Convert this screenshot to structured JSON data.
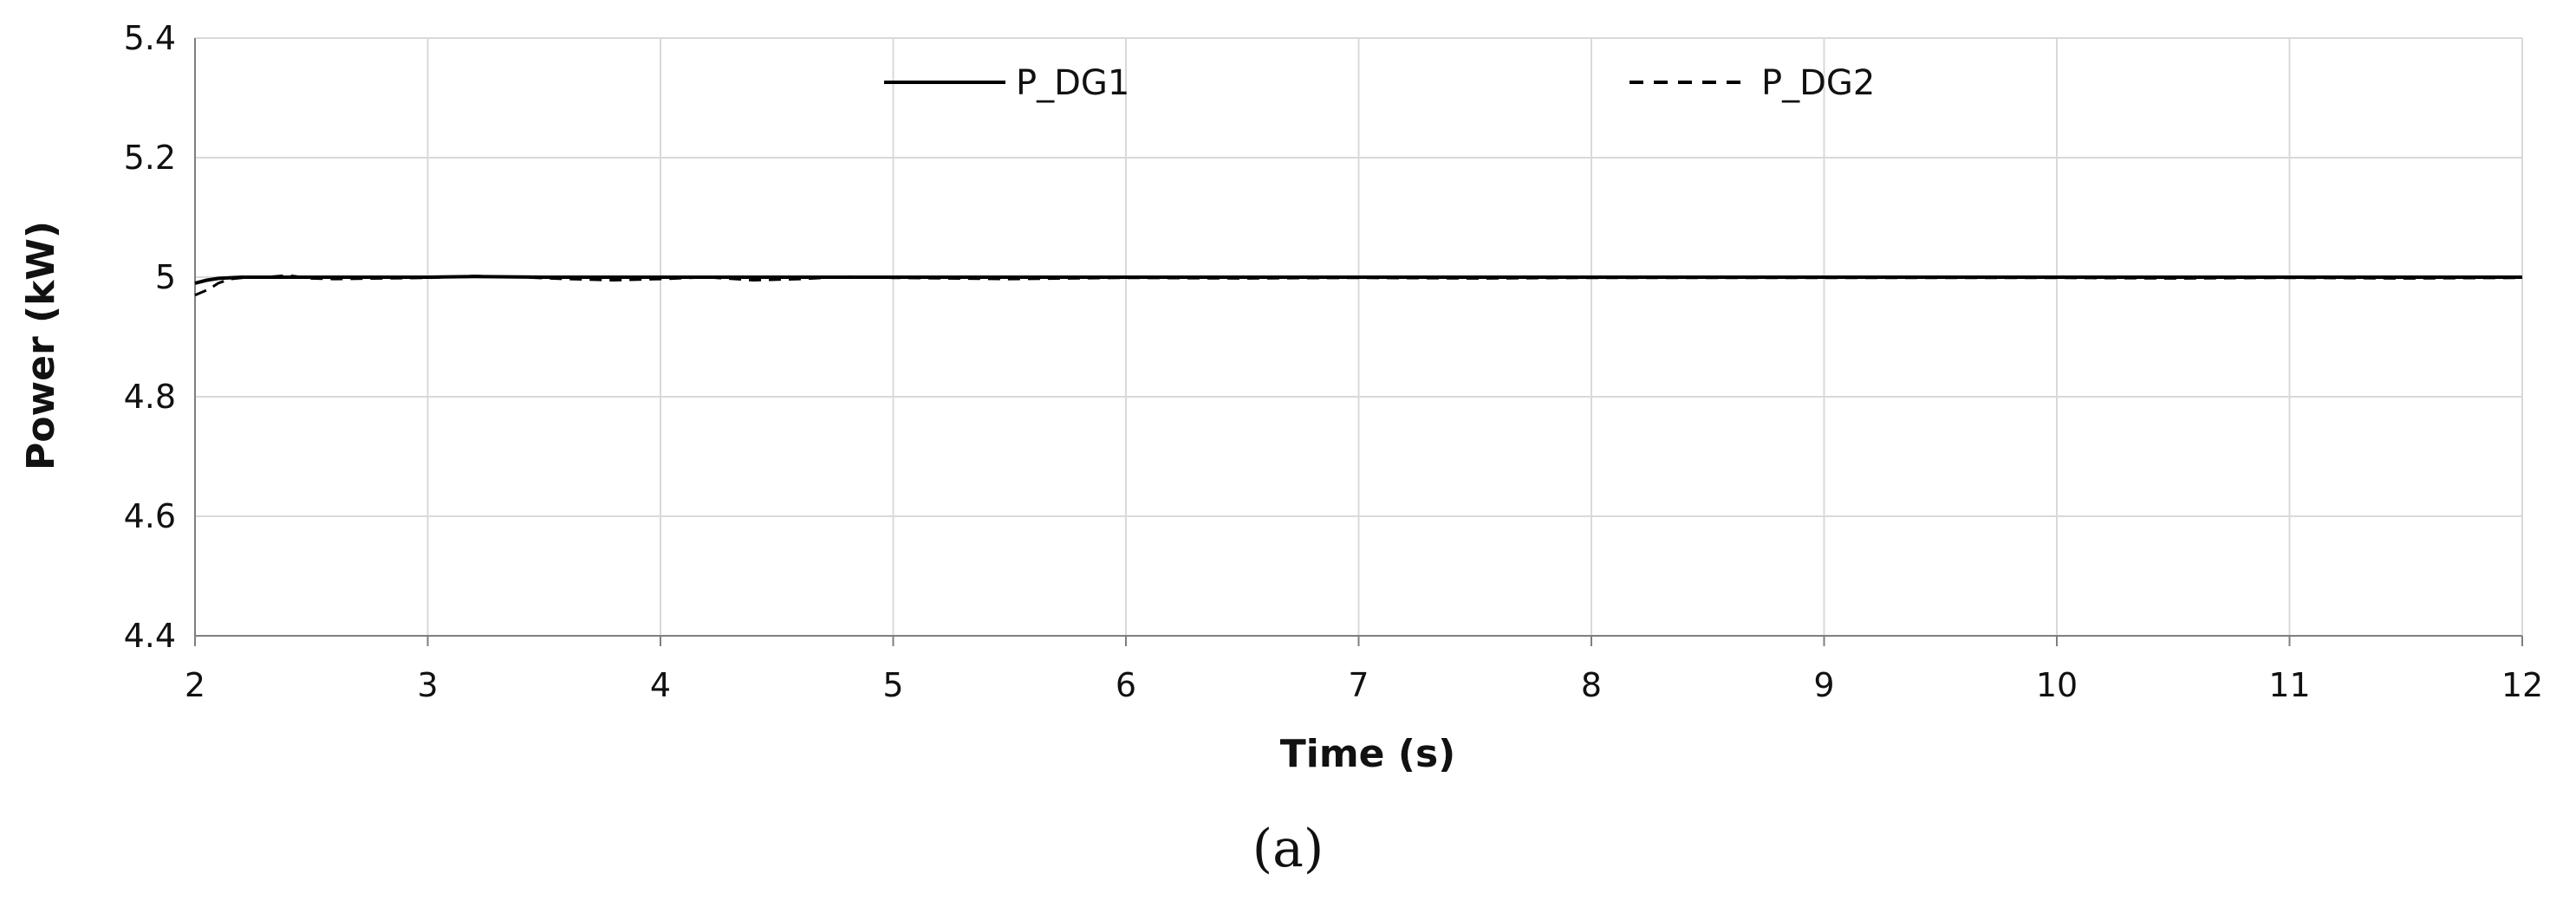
{
  "caption": "(a)",
  "chart_data": {
    "type": "line",
    "title": "",
    "xlabel": "Time (s)",
    "ylabel": "Power (kW)",
    "xlim": [
      2,
      12
    ],
    "ylim": [
      4.4,
      5.4
    ],
    "x_ticks": [
      "2",
      "3",
      "4",
      "5",
      "6",
      "7",
      "8",
      "9",
      "10",
      "11",
      "12"
    ],
    "y_ticks": [
      "4.4",
      "4.6",
      "4.8",
      "5",
      "5.2",
      "5.4"
    ],
    "grid": true,
    "legend_position": "top",
    "series": [
      {
        "name": "P_DG1",
        "style": "solid",
        "color": "#000000",
        "x": [
          2,
          2.05,
          2.1,
          2.2,
          2.4,
          2.6,
          2.8,
          3,
          3.2,
          3.5,
          3.8,
          4,
          4.5,
          5,
          5.5,
          6,
          6.5,
          7,
          7.5,
          8,
          8.5,
          9,
          9.5,
          10,
          10.5,
          11,
          11.5,
          12
        ],
        "y": [
          4.99,
          4.995,
          4.998,
          5.0,
          5.0,
          5.0,
          5.0,
          5.0,
          5.001,
          5.0,
          5.0,
          5.0,
          5.0,
          5.0,
          5.0,
          5.0,
          5.0,
          5.0,
          5.0,
          5.0,
          5.0,
          5.0,
          5.0,
          5.0,
          5.0,
          5.0,
          5.0,
          5.0
        ]
      },
      {
        "name": "P_DG2",
        "style": "dashed",
        "color": "#000000",
        "x": [
          2,
          2.03,
          2.06,
          2.1,
          2.15,
          2.2,
          2.3,
          2.4,
          2.5,
          2.6,
          2.8,
          3,
          3.2,
          3.4,
          3.6,
          3.8,
          4,
          4.2,
          4.4,
          4.6,
          4.8,
          5,
          5.5,
          6,
          6.5,
          7,
          7.5,
          8,
          8.5,
          9,
          9.5,
          10,
          10.5,
          11,
          11.5,
          12
        ],
        "y": [
          4.97,
          4.975,
          4.98,
          4.99,
          4.997,
          4.999,
          5.0,
          5.003,
          4.998,
          4.997,
          4.998,
          4.999,
          5.002,
          5.0,
          4.997,
          4.995,
          4.997,
          5.0,
          4.995,
          4.997,
          5.001,
          4.999,
          4.997,
          4.999,
          4.998,
          4.999,
          4.998,
          4.999,
          4.999,
          4.999,
          4.999,
          4.999,
          4.998,
          4.999,
          4.998,
          4.999
        ]
      }
    ]
  }
}
